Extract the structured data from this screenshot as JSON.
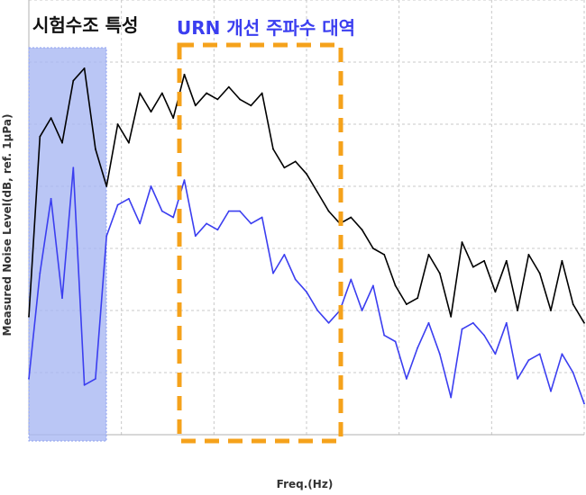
{
  "chart_data": {
    "type": "line",
    "xlabel": "Freq.(Hz)",
    "ylabel": "Measured Noise Level(dB, ref. 1μPa)",
    "grid": true,
    "legend": "none",
    "annotations": [
      {
        "text": "시험수조 특성",
        "color": "#111111",
        "box_color": "#a9b8f3"
      },
      {
        "text": "URN 개선 주파수 대역",
        "color": "#3b3ef0",
        "box_color": "#f5a21b"
      }
    ],
    "series": [
      {
        "color": "#000000",
        "x": [
          0,
          2,
          4,
          6,
          8,
          10,
          12,
          14,
          16,
          18,
          20,
          22,
          24,
          26,
          28,
          30,
          32,
          34,
          36,
          38,
          40,
          42,
          44,
          46,
          48,
          50,
          52,
          54,
          56,
          58,
          60,
          62,
          64,
          66,
          68,
          70,
          72,
          74,
          76,
          78,
          80,
          82,
          84,
          86,
          88,
          90,
          92,
          94,
          96,
          98,
          100
        ],
        "y": [
          1.9,
          4.8,
          5.1,
          4.7,
          5.7,
          5.9,
          4.6,
          4.0,
          5.0,
          4.7,
          5.5,
          5.2,
          5.5,
          5.1,
          5.8,
          5.3,
          5.5,
          5.4,
          5.6,
          5.4,
          5.3,
          5.5,
          4.6,
          4.3,
          4.4,
          4.2,
          3.9,
          3.6,
          3.4,
          3.5,
          3.3,
          3.0,
          2.9,
          2.4,
          2.1,
          2.2,
          2.9,
          2.6,
          1.9,
          3.1,
          2.7,
          2.8,
          2.3,
          2.8,
          2.0,
          2.9,
          2.6,
          2.0,
          2.8,
          2.1,
          1.8
        ]
      },
      {
        "color": "#3b3ef0",
        "x": [
          0,
          2,
          4,
          6,
          8,
          10,
          12,
          14,
          16,
          18,
          20,
          22,
          24,
          26,
          28,
          30,
          32,
          34,
          36,
          38,
          40,
          42,
          44,
          46,
          48,
          50,
          52,
          54,
          56,
          58,
          60,
          62,
          64,
          66,
          68,
          70,
          72,
          74,
          76,
          78,
          80,
          82,
          84,
          86,
          88,
          90,
          92,
          94,
          96,
          98,
          100
        ],
        "y": [
          0.9,
          2.6,
          3.8,
          2.2,
          4.3,
          0.8,
          0.9,
          3.2,
          3.7,
          3.8,
          3.4,
          4.0,
          3.6,
          3.5,
          4.1,
          3.2,
          3.4,
          3.3,
          3.6,
          3.6,
          3.4,
          3.5,
          2.6,
          2.9,
          2.5,
          2.3,
          2.0,
          1.8,
          2.0,
          2.5,
          2.0,
          2.4,
          1.6,
          1.5,
          0.9,
          1.4,
          1.8,
          1.3,
          0.6,
          1.7,
          1.8,
          1.6,
          1.3,
          1.8,
          0.9,
          1.2,
          1.3,
          0.7,
          1.3,
          1.0,
          0.5
        ]
      }
    ]
  }
}
